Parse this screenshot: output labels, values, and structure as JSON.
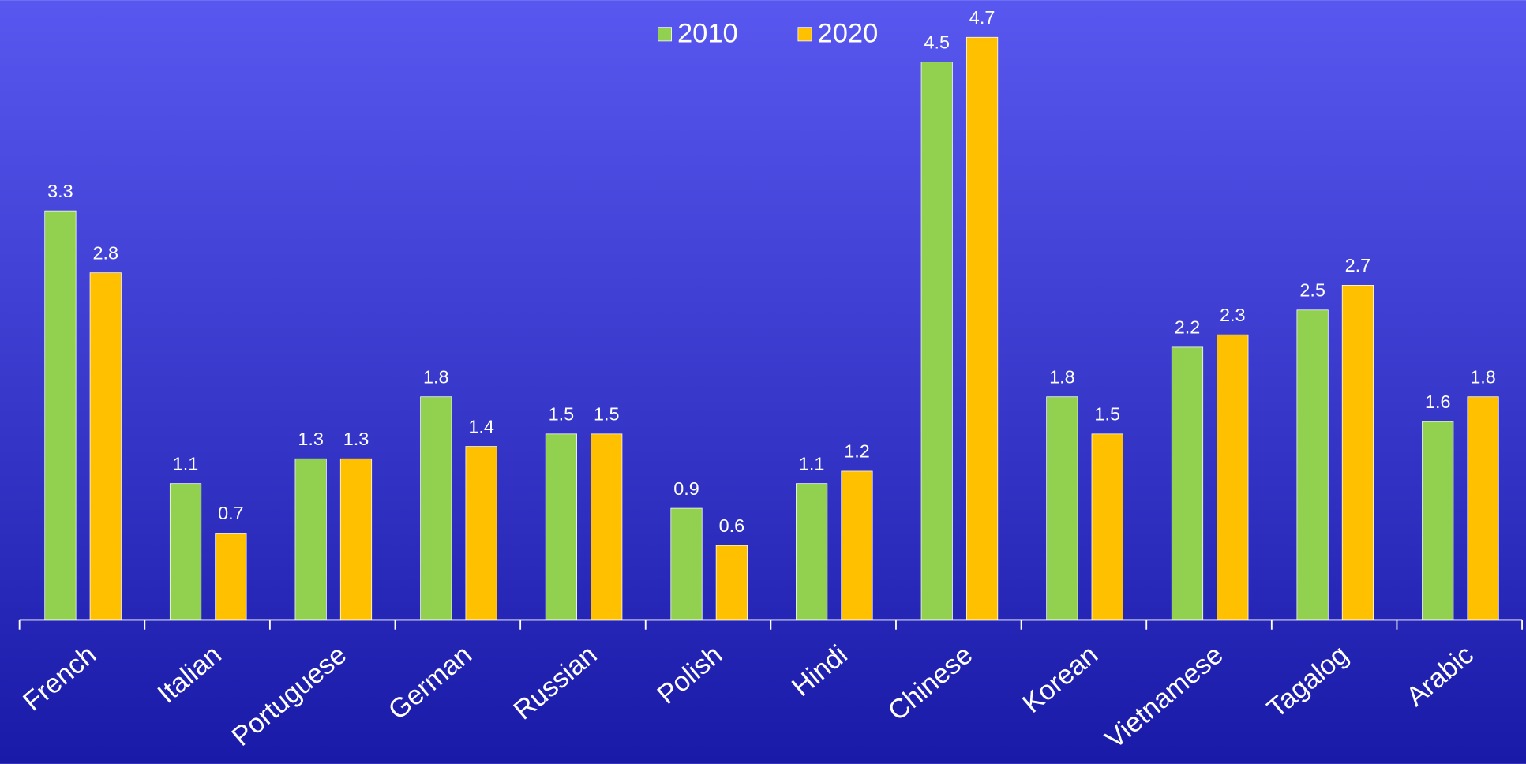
{
  "chart_data": {
    "type": "bar",
    "categories": [
      "French",
      "Italian",
      "Portuguese",
      "German",
      "Russian",
      "Polish",
      "Hindi",
      "Chinese",
      "Korean",
      "Vietnamese",
      "Tagalog",
      "Arabic"
    ],
    "series": [
      {
        "name": "2010",
        "color": "#92d050",
        "values": [
          3.3,
          1.1,
          1.3,
          1.8,
          1.5,
          0.9,
          1.1,
          4.5,
          1.8,
          2.2,
          2.5,
          1.6
        ]
      },
      {
        "name": "2020",
        "color": "#ffc000",
        "values": [
          2.8,
          0.7,
          1.3,
          1.4,
          1.5,
          0.6,
          1.2,
          4.7,
          1.5,
          2.3,
          2.7,
          1.8
        ]
      }
    ],
    "ylim": [
      0,
      5
    ],
    "legend": "top"
  }
}
